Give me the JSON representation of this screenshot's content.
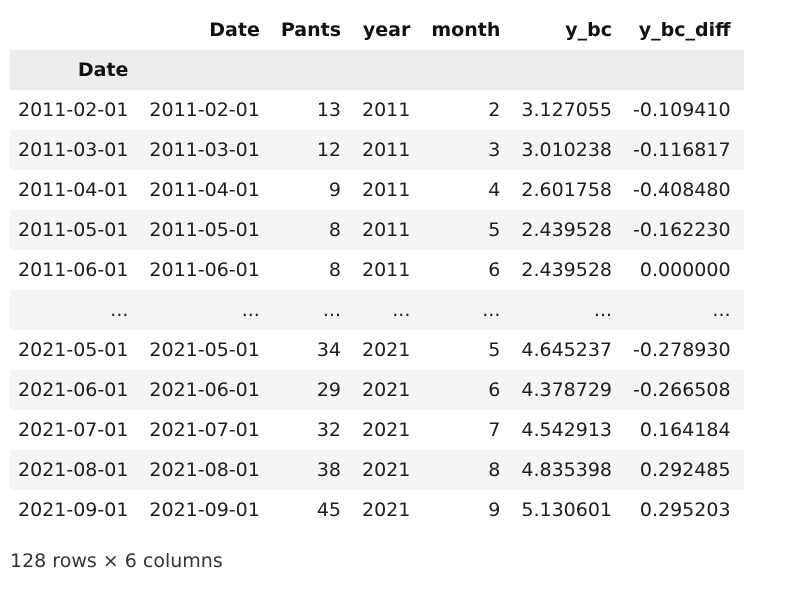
{
  "table": {
    "columns": [
      "Date",
      "Pants",
      "year",
      "month",
      "y_bc",
      "y_bc_diff"
    ],
    "index_name": "Date",
    "rows": [
      {
        "index": "2011-02-01",
        "cells": [
          "2011-02-01",
          "13",
          "2011",
          "2",
          "3.127055",
          "-0.109410"
        ]
      },
      {
        "index": "2011-03-01",
        "cells": [
          "2011-03-01",
          "12",
          "2011",
          "3",
          "3.010238",
          "-0.116817"
        ]
      },
      {
        "index": "2011-04-01",
        "cells": [
          "2011-04-01",
          "9",
          "2011",
          "4",
          "2.601758",
          "-0.408480"
        ]
      },
      {
        "index": "2011-05-01",
        "cells": [
          "2011-05-01",
          "8",
          "2011",
          "5",
          "2.439528",
          "-0.162230"
        ]
      },
      {
        "index": "2011-06-01",
        "cells": [
          "2011-06-01",
          "8",
          "2011",
          "6",
          "2.439528",
          "0.000000"
        ]
      },
      {
        "index": "...",
        "cells": [
          "...",
          "...",
          "...",
          "...",
          "...",
          "..."
        ]
      },
      {
        "index": "2021-05-01",
        "cells": [
          "2021-05-01",
          "34",
          "2021",
          "5",
          "4.645237",
          "-0.278930"
        ]
      },
      {
        "index": "2021-06-01",
        "cells": [
          "2021-06-01",
          "29",
          "2021",
          "6",
          "4.378729",
          "-0.266508"
        ]
      },
      {
        "index": "2021-07-01",
        "cells": [
          "2021-07-01",
          "32",
          "2021",
          "7",
          "4.542913",
          "0.164184"
        ]
      },
      {
        "index": "2021-08-01",
        "cells": [
          "2021-08-01",
          "38",
          "2021",
          "8",
          "4.835398",
          "0.292485"
        ]
      },
      {
        "index": "2021-09-01",
        "cells": [
          "2021-09-01",
          "45",
          "2021",
          "9",
          "5.130601",
          "0.295203"
        ]
      }
    ]
  },
  "footer": {
    "shape_text": "128 rows × 6 columns"
  }
}
